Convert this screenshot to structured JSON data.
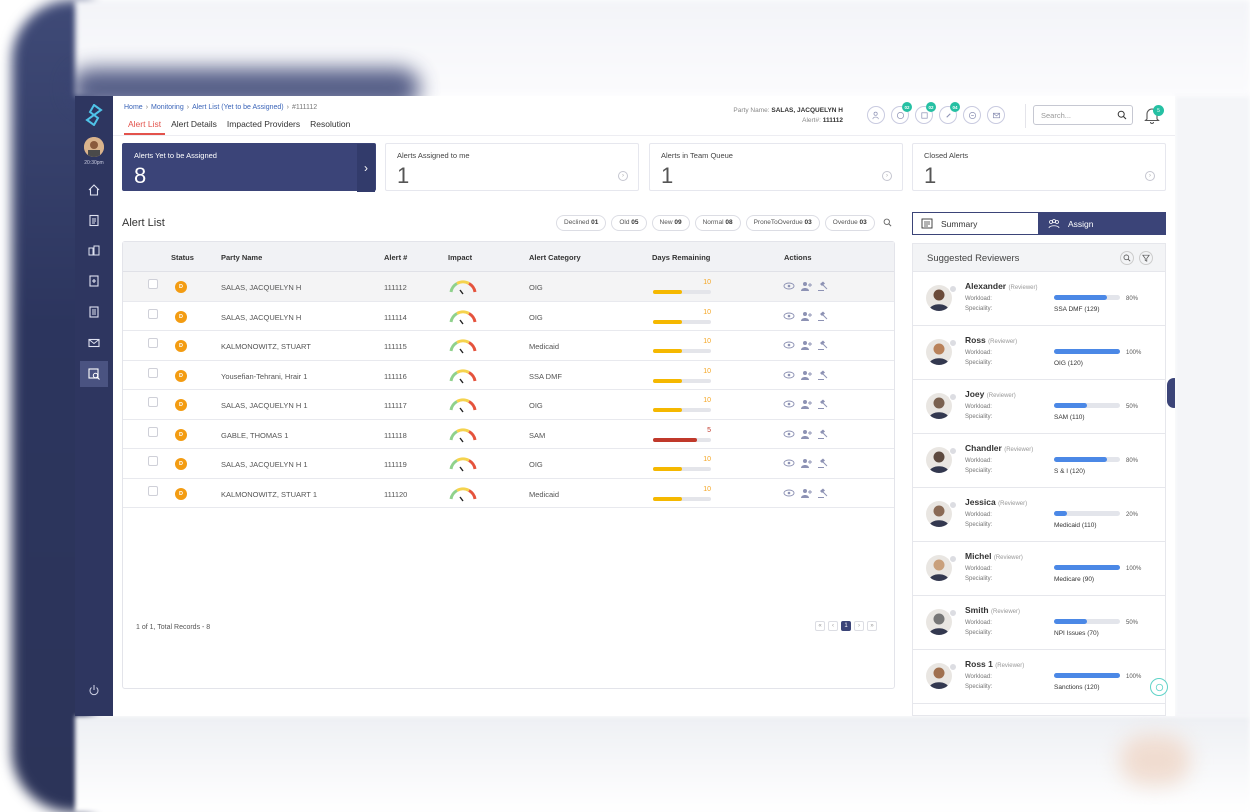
{
  "header": {
    "breadcrumb": [
      "Home",
      "Monitoring",
      "Alert List (Yet to be Assigned)",
      "#111112"
    ],
    "tabs": [
      "Alert List",
      "Alert Details",
      "Impacted Providers",
      "Resolution"
    ],
    "party_label": "Party Name:",
    "party_name": "SALAS, JACQUELYN H",
    "alert_label": "Alert#:",
    "alert_no": "111112",
    "badges": [
      "02",
      "02",
      "04"
    ],
    "search_placeholder": "Search...",
    "bell_count": "5"
  },
  "sidebar": {
    "time": "20:30pm"
  },
  "cards": [
    {
      "title": "Alerts Yet to be Assigned",
      "value": "8"
    },
    {
      "title": "Alerts Assigned to me",
      "value": "1"
    },
    {
      "title": "Alerts in Team Queue",
      "value": "1"
    },
    {
      "title": "Closed Alerts",
      "value": "1"
    }
  ],
  "alert_list": {
    "title": "Alert List",
    "filters": [
      {
        "label": "Declined",
        "count": "01"
      },
      {
        "label": "Old",
        "count": "05"
      },
      {
        "label": "New",
        "count": "09"
      },
      {
        "label": "Normal",
        "count": "08"
      },
      {
        "label": "ProneToOverdue",
        "count": "03"
      },
      {
        "label": "Overdue",
        "count": "03"
      }
    ],
    "columns": [
      "Status",
      "Party Name",
      "Alert #",
      "Impact",
      "Alert Category",
      "Days Remaining",
      "Actions"
    ],
    "rows": [
      {
        "status": "D",
        "party": "SALAS, JACQUELYN H",
        "alert": "111112",
        "category": "OIG",
        "days": "10",
        "fill": 0.5
      },
      {
        "status": "D",
        "party": "SALAS, JACQUELYN H",
        "alert": "111114",
        "category": "OIG",
        "days": "10",
        "fill": 0.5
      },
      {
        "status": "D",
        "party": "KALMONOWITZ, STUART",
        "alert": "111115",
        "category": "Medicaid",
        "days": "10",
        "fill": 0.5
      },
      {
        "status": "D",
        "party": "Yousefian-Tehrani, Hrair 1",
        "alert": "111116",
        "category": "SSA DMF",
        "days": "10",
        "fill": 0.5
      },
      {
        "status": "D",
        "party": "SALAS, JACQUELYN H 1",
        "alert": "111117",
        "category": "OIG",
        "days": "10",
        "fill": 0.5
      },
      {
        "status": "D",
        "party": "GABLE, THOMAS 1",
        "alert": "111118",
        "category": "SAM",
        "days": "5",
        "fill": 0.75
      },
      {
        "status": "D",
        "party": "SALAS, JACQUELYN H 1",
        "alert": "111119",
        "category": "OIG",
        "days": "10",
        "fill": 0.5
      },
      {
        "status": "D",
        "party": "KALMONOWITZ, STUART 1",
        "alert": "111120",
        "category": "Medicaid",
        "days": "10",
        "fill": 0.5
      }
    ],
    "pager_text": "1 of 1, Total Records - 8",
    "current_page": "1"
  },
  "right_panel": {
    "tabs": [
      "Summary",
      "Assign"
    ],
    "title": "Suggested Reviewers",
    "workload_label": "Workload:",
    "speciality_label": "Speciality:",
    "role": "(Reviewer)",
    "reviewers": [
      {
        "name": "Alexander",
        "workload": 0.8,
        "pct": "80%",
        "speciality": "SSA DMF (129)"
      },
      {
        "name": "Ross",
        "workload": 1.0,
        "pct": "100%",
        "speciality": "OIG (120)"
      },
      {
        "name": "Joey",
        "workload": 0.5,
        "pct": "50%",
        "speciality": "SAM (110)"
      },
      {
        "name": "Chandler",
        "workload": 0.8,
        "pct": "80%",
        "speciality": "S & I (120)"
      },
      {
        "name": "Jessica",
        "workload": 0.2,
        "pct": "20%",
        "speciality": "Medicaid (110)"
      },
      {
        "name": "Michel",
        "workload": 1.0,
        "pct": "100%",
        "speciality": "Medicare (90)"
      },
      {
        "name": "Smith",
        "workload": 0.5,
        "pct": "50%",
        "speciality": "NPI Issues (70)"
      },
      {
        "name": "Ross 1",
        "workload": 1.0,
        "pct": "100%",
        "speciality": "Sanctions (120)"
      }
    ]
  },
  "colors": {
    "navy": "#3b4478",
    "accent_red": "#e3534c",
    "teal": "#25c0a3",
    "amber": "#f5b800",
    "danger": "#c0392b"
  }
}
